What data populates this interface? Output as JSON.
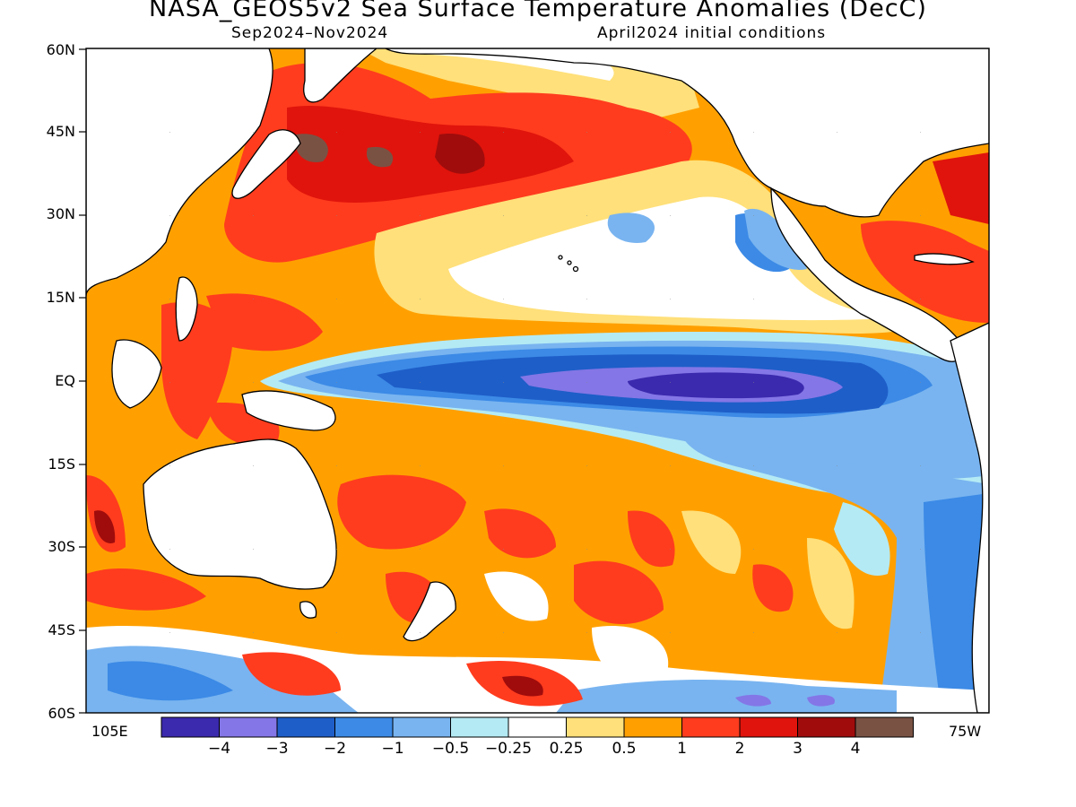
{
  "title": "NASA_GEOS5v2 Sea Surface Temperature Anomalies (DecC)",
  "subtitle_left": "Sep2024–Nov2024",
  "subtitle_right": "April2024 initial conditions",
  "lat_labels": [
    "60N",
    "45N",
    "30N",
    "15N",
    "EQ",
    "15S",
    "30S",
    "45S",
    "60S"
  ],
  "lon_left": "105E",
  "lon_right": "75W",
  "colorbar": {
    "colors": [
      "#3b2aae",
      "#8476e6",
      "#1e5ec8",
      "#3c8ae6",
      "#79b4f0",
      "#b4eaf4",
      "#ffffff",
      "#ffe07a",
      "#ffa000",
      "#ff3c1e",
      "#e0140c",
      "#a00c0c",
      "#7a5244"
    ],
    "labels": [
      "−4",
      "−3",
      "−2",
      "−1",
      "−0.5",
      "−0.25",
      "0.25",
      "0.5",
      "1",
      "2",
      "3",
      "4"
    ]
  },
  "map_data": {
    "projection": "lat-lon",
    "lat_range": [
      -60,
      60
    ],
    "lon_range_east": [
      105,
      285
    ],
    "feature": "La Nina-like cold anomaly along equatorial Pacific, strongest below -3 near 150W-110W; warm anomalies in northwest Pacific above +4 near 45N"
  }
}
